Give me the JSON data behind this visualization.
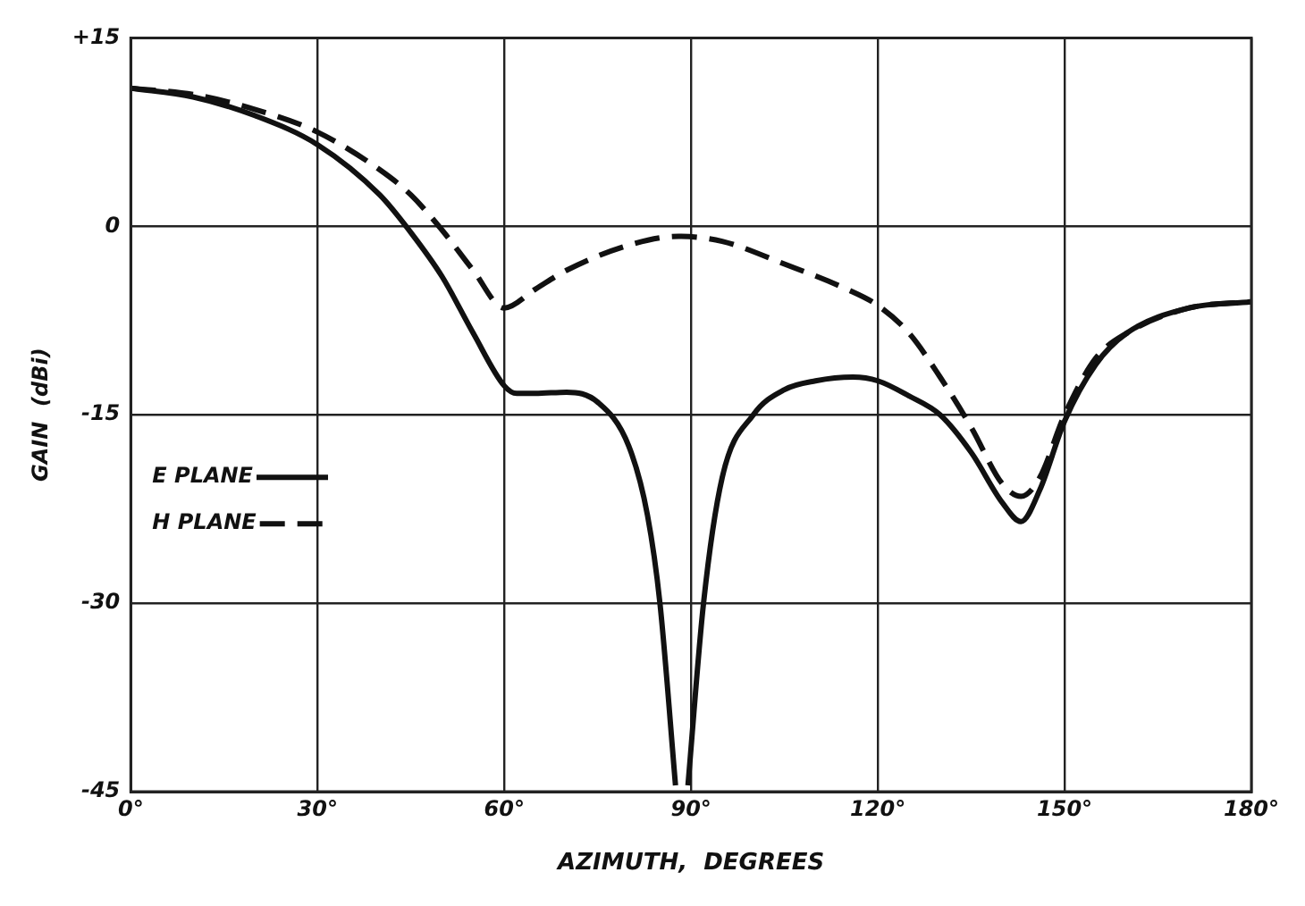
{
  "chart_data": {
    "type": "line",
    "xlabel": "AZIMUTH,  DEGREES",
    "ylabel": "GAIN  (dBi)",
    "xlim": [
      0,
      180
    ],
    "xticks": [
      {
        "value": 0,
        "label": "0°"
      },
      {
        "value": 30,
        "label": "30°"
      },
      {
        "value": 60,
        "label": "60°"
      },
      {
        "value": 90,
        "label": "90°"
      },
      {
        "value": 120,
        "label": "120°"
      },
      {
        "value": 150,
        "label": "150°"
      },
      {
        "value": 180,
        "label": "180°"
      }
    ],
    "ylim": [
      -45,
      15
    ],
    "yticks": [
      -45,
      -30,
      -15,
      0,
      {
        "value": 15,
        "label": "+15"
      }
    ],
    "grid": true,
    "legend": "left",
    "marker": "none",
    "series": [
      {
        "name": "E PLANE",
        "color": "#111111",
        "line_style": "solid",
        "x": [
          0,
          10,
          20,
          30,
          40,
          45,
          50,
          55,
          60,
          62,
          65,
          70,
          75,
          80,
          83,
          85,
          87.5,
          88.5,
          89.5,
          92,
          95,
          100,
          105,
          110,
          116,
          120,
          125,
          130,
          135,
          140,
          143,
          146,
          150,
          155,
          160,
          170,
          180
        ],
        "values": [
          11,
          10.3,
          8.8,
          6.5,
          2.5,
          -0.5,
          -4,
          -8.5,
          -12.7,
          -13.3,
          -13.3,
          -13.2,
          -14,
          -17.5,
          -23,
          -30,
          -44.5,
          null,
          -44.5,
          -30,
          -20,
          -15,
          -13,
          -12.3,
          -12,
          -12.3,
          -13.5,
          -15,
          -18,
          -22,
          -23.5,
          -21,
          -15.5,
          -11,
          -8.5,
          -6.5,
          -6
        ]
      },
      {
        "name": "H PLANE",
        "color": "#111111",
        "line_style": "dashed",
        "x": [
          0,
          10,
          20,
          30,
          40,
          45,
          50,
          55,
          60,
          65,
          70,
          80,
          88,
          95,
          105,
          115,
          120,
          125,
          130,
          135,
          140,
          143,
          146,
          150,
          155,
          160,
          170,
          180
        ],
        "values": [
          11,
          10.5,
          9.3,
          7.5,
          4.5,
          2.5,
          -0.3,
          -3.5,
          -6.5,
          -5,
          -3.5,
          -1.5,
          -0.8,
          -1.2,
          -3,
          -5,
          -6.3,
          -8.5,
          -12,
          -16,
          -20.5,
          -21.5,
          -20,
          -15,
          -10.5,
          -8.5,
          -6.5,
          -6
        ]
      }
    ]
  }
}
